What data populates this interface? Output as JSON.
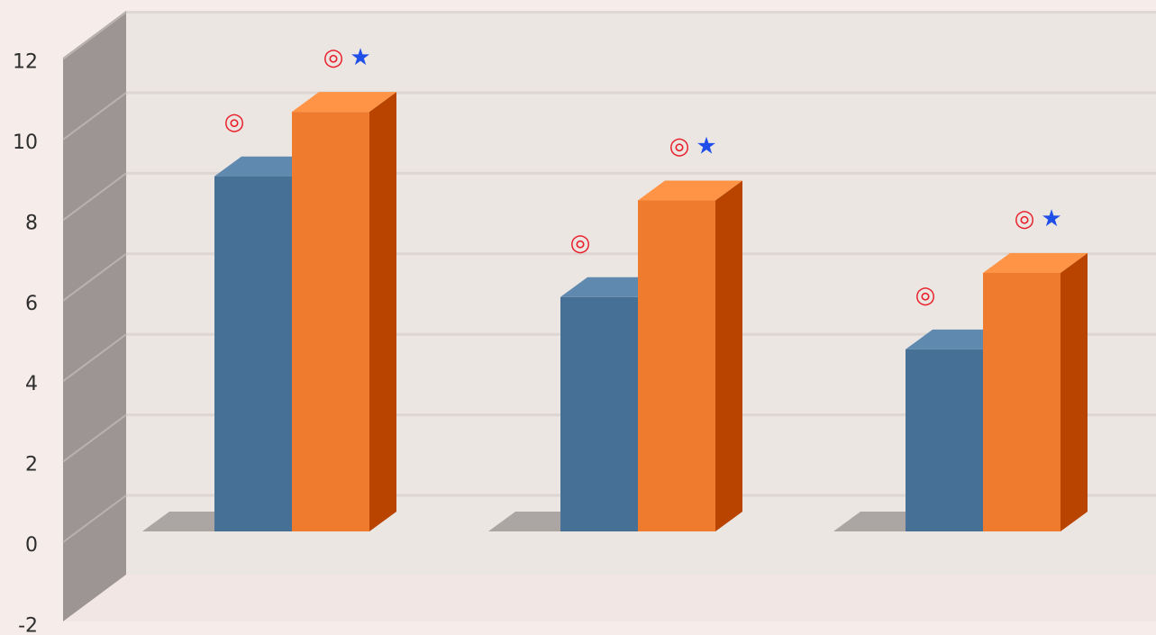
{
  "chart_data": {
    "type": "bar",
    "style": "3d-clustered-column",
    "title": "",
    "xlabel": "",
    "ylabel": "",
    "categories": [
      "",
      "",
      ""
    ],
    "series": [
      {
        "values": [
          9.0,
          6.0,
          4.7
        ],
        "color": "#467096"
      },
      {
        "values": [
          10.6,
          8.4,
          6.6
        ],
        "color": "#ef7b2e"
      }
    ],
    "ylim": [
      -2,
      12
    ],
    "yticks": [
      12,
      10,
      8,
      6,
      4,
      2,
      0,
      -2
    ],
    "ytick_labels": [
      "12",
      "10",
      "8",
      "6",
      "4",
      "2",
      "0",
      "-2"
    ],
    "grid": true,
    "legend": "none",
    "annotations": [
      {
        "category_index": 0,
        "series_index": 0,
        "symbols": [
          "◎"
        ],
        "colors": [
          "#e8202a"
        ]
      },
      {
        "category_index": 0,
        "series_index": 1,
        "symbols": [
          "◎",
          "★"
        ],
        "colors": [
          "#e8202a",
          "#1f4fe8"
        ]
      },
      {
        "category_index": 1,
        "series_index": 0,
        "symbols": [
          "◎"
        ],
        "colors": [
          "#e8202a"
        ]
      },
      {
        "category_index": 1,
        "series_index": 1,
        "symbols": [
          "◎",
          "★"
        ],
        "colors": [
          "#e8202a",
          "#1f4fe8"
        ]
      },
      {
        "category_index": 2,
        "series_index": 0,
        "symbols": [
          "◎"
        ],
        "colors": [
          "#e8202a"
        ]
      },
      {
        "category_index": 2,
        "series_index": 1,
        "symbols": [
          "◎",
          "★"
        ],
        "colors": [
          "#e8202a",
          "#1f4fe8"
        ]
      }
    ],
    "colors": {
      "background": "#f6ecea",
      "back_wall": "#ece6e3",
      "side_wall": "#9d9593",
      "gridline": "#ddd6d2",
      "bar_shadow": "#a49d9b"
    }
  }
}
